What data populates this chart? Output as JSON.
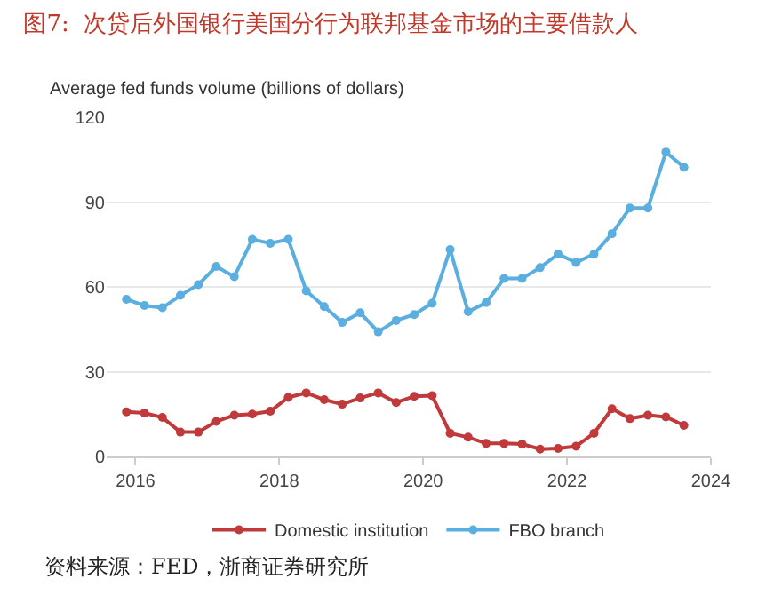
{
  "chart_data": {
    "type": "line",
    "title": "图7:  次贷后外国银行美国分行为联邦基金市场的主要借款人",
    "ylabel": "Average fed funds volume (billions of dollars)",
    "annotations": [
      "资料来源：FED，浙商证券研究所"
    ],
    "x": [
      2015.875,
      2016.125,
      2016.375,
      2016.625,
      2016.875,
      2017.125,
      2017.375,
      2017.625,
      2017.875,
      2018.125,
      2018.375,
      2018.625,
      2018.875,
      2019.125,
      2019.375,
      2019.625,
      2019.875,
      2020.125,
      2020.375,
      2020.625,
      2020.875,
      2021.125,
      2021.375,
      2021.625,
      2021.875,
      2022.125,
      2022.375,
      2022.625,
      2022.875,
      2023.125,
      2023.375,
      2023.625
    ],
    "series": [
      {
        "name": "Domestic institution",
        "color": "#c0393b",
        "values": [
          15.8,
          15.4,
          13.8,
          8.6,
          8.6,
          12.4,
          14.6,
          15.0,
          16.0,
          20.9,
          22.5,
          20.1,
          18.5,
          20.7,
          22.5,
          19.1,
          21.3,
          21.5,
          8.2,
          6.8,
          4.6,
          4.6,
          4.4,
          2.6,
          2.8,
          3.6,
          8.2,
          16.9,
          13.4,
          14.6,
          14.0,
          11.0
        ]
      },
      {
        "name": "FBO branch",
        "color": "#5aaee0",
        "values": [
          55.6,
          53.4,
          52.6,
          57.0,
          60.8,
          67.2,
          63.6,
          76.8,
          75.4,
          76.8,
          58.6,
          53.0,
          47.4,
          50.8,
          44.1,
          48.1,
          50.2,
          54.2,
          73.2,
          51.2,
          54.4,
          63.0,
          63.0,
          66.8,
          71.6,
          68.6,
          71.6,
          78.8,
          87.9,
          87.9,
          107.7,
          102.3
        ]
      }
    ],
    "xlim": [
      2015.6,
      2024
    ],
    "xticks": [
      2016,
      2018,
      2020,
      2022,
      2024
    ],
    "ylim": [
      0,
      120
    ],
    "yticks": [
      0,
      30,
      60,
      90,
      120
    ],
    "grid": "y",
    "legend": "bottom",
    "marker": "circle",
    "line_style": "solid"
  }
}
